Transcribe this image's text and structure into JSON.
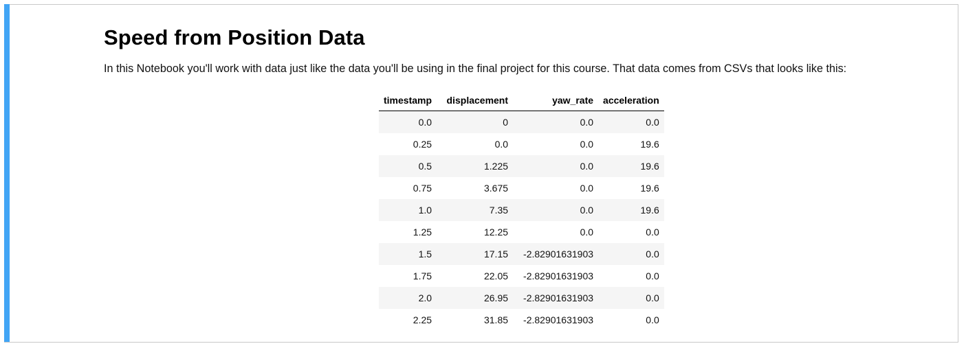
{
  "markdown": {
    "title": "Speed from Position Data",
    "intro": "In this Notebook you'll work with data just like the data you'll be using in the final project for this course. That data comes from CSVs that looks like this:"
  },
  "colors": {
    "cell_bar": "#42a5f5",
    "cell_border": "#c8c8c8",
    "row_stripe": "#f5f5f5"
  },
  "table": {
    "columns": [
      "timestamp",
      "displacement",
      "yaw_rate",
      "acceleration"
    ],
    "rows": [
      [
        "0.0",
        "0",
        "0.0",
        "0.0"
      ],
      [
        "0.25",
        "0.0",
        "0.0",
        "19.6"
      ],
      [
        "0.5",
        "1.225",
        "0.0",
        "19.6"
      ],
      [
        "0.75",
        "3.675",
        "0.0",
        "19.6"
      ],
      [
        "1.0",
        "7.35",
        "0.0",
        "19.6"
      ],
      [
        "1.25",
        "12.25",
        "0.0",
        "0.0"
      ],
      [
        "1.5",
        "17.15",
        "-2.82901631903",
        "0.0"
      ],
      [
        "1.75",
        "22.05",
        "-2.82901631903",
        "0.0"
      ],
      [
        "2.0",
        "26.95",
        "-2.82901631903",
        "0.0"
      ],
      [
        "2.25",
        "31.85",
        "-2.82901631903",
        "0.0"
      ]
    ]
  }
}
